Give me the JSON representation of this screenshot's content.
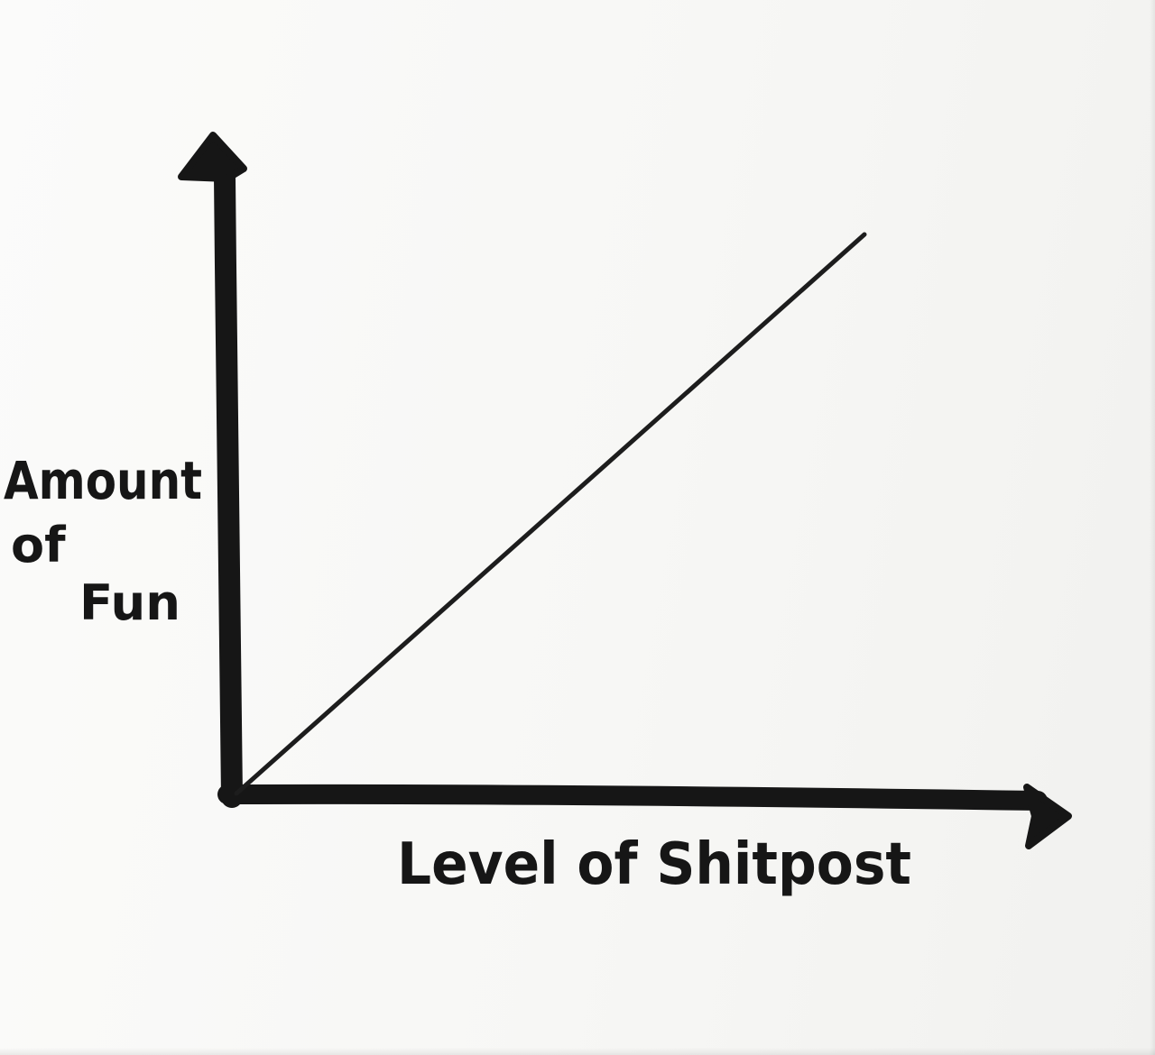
{
  "chart_data": {
    "type": "line",
    "title": "",
    "xlabel": "Level of Shitpost",
    "ylabel_lines": [
      "Amount",
      "of",
      "Fun"
    ],
    "x": [
      0,
      1
    ],
    "series": [
      {
        "values": [
          0,
          1
        ]
      }
    ],
    "xlim": [
      0,
      1
    ],
    "ylim": [
      0,
      1
    ],
    "grid": false,
    "legend": "none",
    "colors": {
      "ink": "#161616",
      "paper": "#f6f6f4"
    }
  }
}
